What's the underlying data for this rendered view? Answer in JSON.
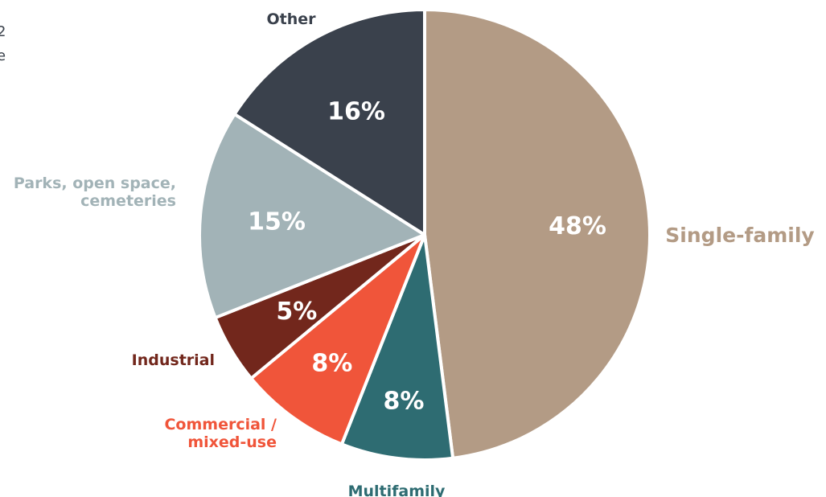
{
  "chart_data": {
    "type": "pie",
    "start_angle_deg": 0,
    "direction": "clockwise",
    "slices": [
      {
        "label": [
          "Single-family"
        ],
        "value": 48,
        "display": "48%",
        "color": "#b39b85",
        "label_color": "#b39b85"
      },
      {
        "label": [
          "Multifamily"
        ],
        "value": 8,
        "display": "8%",
        "color": "#2e6c72",
        "label_color": "#2e6c72"
      },
      {
        "label": [
          "Commercial /",
          "mixed-use"
        ],
        "value": 8,
        "display": "8%",
        "color": "#f0553a",
        "label_color": "#f0553a"
      },
      {
        "label": [
          "Industrial"
        ],
        "value": 5,
        "display": "5%",
        "color": "#72271c",
        "label_color": "#72271c"
      },
      {
        "label": [
          "Parks, open space,",
          "cemeteries"
        ],
        "value": 15,
        "display": "15%",
        "color": "#a2b3b7",
        "label_color": "#a2b3b7"
      },
      {
        "label": [
          "Other"
        ],
        "value": 16,
        "display": "16%",
        "color": "#3a414c",
        "label_color": "#3a414c"
      }
    ],
    "legend": "none",
    "cropped_edge_text": [
      "2",
      "e"
    ]
  }
}
